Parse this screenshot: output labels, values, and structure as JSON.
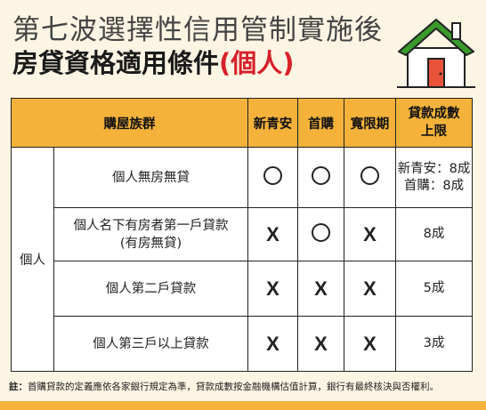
{
  "header": {
    "title_line1": "第七波選擇性信用管制實施後",
    "title_line2_main": "房貸資格適用條件",
    "title_line2_accent": "(個人)"
  },
  "table": {
    "headers": {
      "group": "購屋族群",
      "col1": "新青安",
      "col2": "首購",
      "col3": "寬限期",
      "col4": "貸款成數上限"
    },
    "group_label": "個人",
    "rows": [
      {
        "label": "個人無房無貸",
        "col1": "O",
        "col2": "O",
        "col3": "O",
        "limit_line1": "新青安：8成",
        "limit_line2": "首購：8成"
      },
      {
        "label_line1": "個人名下有房者第一戶貸款",
        "label_line2": "(有房無貸)",
        "col1": "X",
        "col2": "O",
        "col3": "X",
        "limit": "8成"
      },
      {
        "label": "個人第二戶貸款",
        "col1": "X",
        "col2": "X",
        "col3": "X",
        "limit": "5成"
      },
      {
        "label": "個人第三戶以上貸款",
        "col1": "X",
        "col2": "X",
        "col3": "X",
        "limit": "3成"
      }
    ]
  },
  "note": {
    "prefix": "註：",
    "text": "首購貸款的定義應依各家銀行規定為準，貸款成數按金融機構估值計算，銀行有最終核決與否權利。"
  },
  "colors": {
    "header_bg": "#f4b23a",
    "accent": "#d6202a",
    "page_bg": "#fdf5e4",
    "house_roof": "#3a9a2c",
    "house_door": "#e8533a"
  }
}
